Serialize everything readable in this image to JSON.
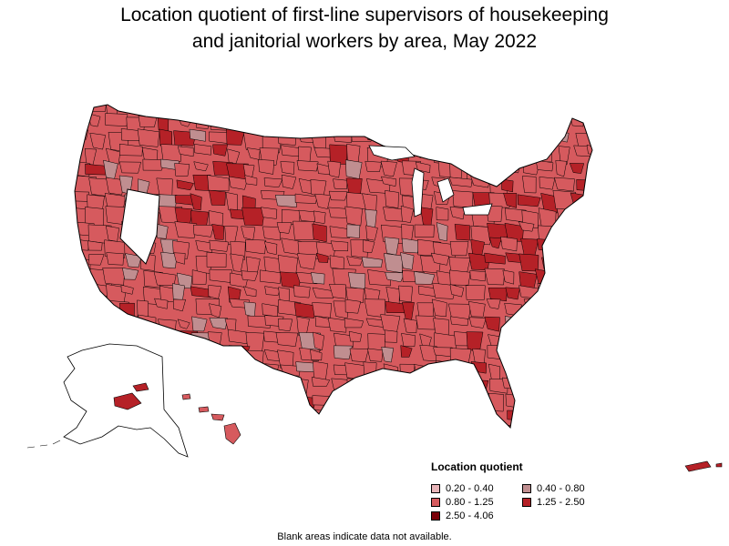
{
  "title": {
    "line1": "Location quotient of first-line supervisors of housekeeping",
    "line2": "and janitorial workers by area, May 2022"
  },
  "legend": {
    "title": "Location quotient",
    "items": [
      {
        "label": "0.20 - 0.40",
        "color": "#e8b4b8"
      },
      {
        "label": "0.40 - 0.80",
        "color": "#c08e90"
      },
      {
        "label": "0.80 - 1.25",
        "color": "#d65a5e"
      },
      {
        "label": "1.25 - 2.50",
        "color": "#b52127"
      },
      {
        "label": "2.50 - 4.06",
        "color": "#7a0008"
      }
    ]
  },
  "footnote": "Blank areas indicate data not available.",
  "colors": {
    "border": "#000000",
    "blank": "#ffffff"
  }
}
